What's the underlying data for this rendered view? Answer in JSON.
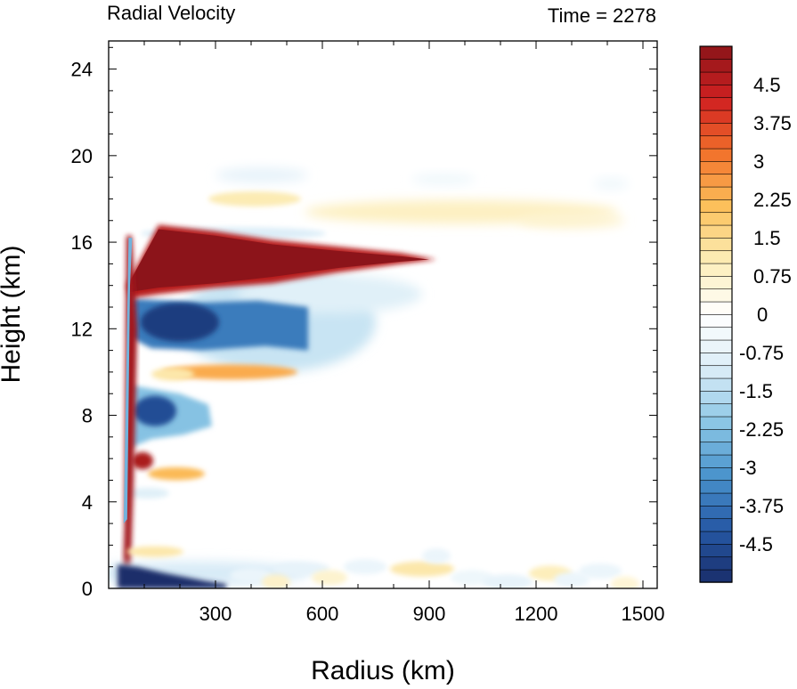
{
  "chart_data": {
    "type": "heatmap",
    "title": "Radial Velocity",
    "subtitle": "Time = 2278",
    "xlabel": "Radius (km)",
    "ylabel": "Height (km)",
    "xlim": [
      0,
      1540
    ],
    "ylim": [
      0,
      25.3
    ],
    "x_ticks": [
      300,
      600,
      900,
      1200,
      1500
    ],
    "y_ticks": [
      0,
      4,
      8,
      12,
      16,
      20,
      24
    ],
    "colorbar": {
      "min": -5.25,
      "max": 5.25,
      "step": 0.25,
      "tick_labels": [
        "4.5",
        "3.75",
        "3",
        "2.25",
        "1.5",
        "0.75",
        "0",
        "-0.75",
        "-1.5",
        "-2.25",
        "-3",
        "-3.75",
        "-4.5"
      ],
      "colors": {
        "strong_positive": "#8b1419",
        "moderate_positive": "#f58a2e",
        "weak_positive": "#fde9a8",
        "zero": "#ffffff",
        "weak_negative": "#d6eaf6",
        "moderate_negative": "#5aa1d0",
        "strong_negative": "#1b2f6a"
      }
    },
    "features": [
      {
        "desc": "outflow jet",
        "r": [
          60,
          920
        ],
        "z": [
          13.5,
          16.8
        ],
        "v": 5.0
      },
      {
        "desc": "inflow layer",
        "r": [
          60,
          560
        ],
        "z": [
          10.8,
          13.5
        ],
        "v": -4.5
      },
      {
        "desc": "outflow band",
        "r": [
          60,
          530
        ],
        "z": [
          9.6,
          10.4
        ],
        "v": 2.5
      },
      {
        "desc": "inflow band",
        "r": [
          60,
          300
        ],
        "z": [
          6.4,
          9.2
        ],
        "v": -3.5
      },
      {
        "desc": "outflow band",
        "r": [
          60,
          260
        ],
        "z": [
          5.0,
          6.2
        ],
        "v": 3.0
      },
      {
        "desc": "boundary-layer inflow",
        "r": [
          30,
          560
        ],
        "z": [
          0,
          1.2
        ],
        "v": -5.0
      },
      {
        "desc": "upper outflow",
        "r": [
          550,
          1440
        ],
        "z": [
          16.6,
          18.2
        ],
        "v": 0.9
      }
    ]
  }
}
